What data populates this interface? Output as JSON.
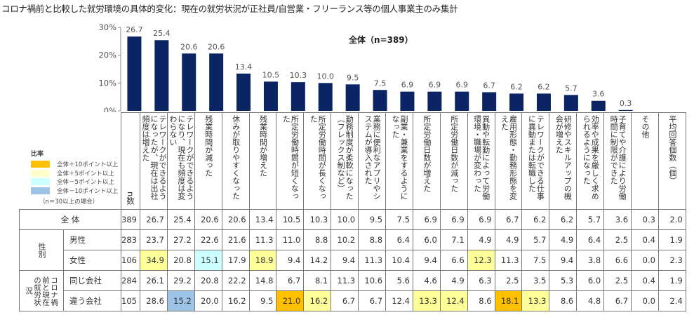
{
  "title": "コロナ禍前と比較した就労環境の具体的変化：現在の就労状況が正社員/自営業・フリーランス等の個人事業主のみ集計",
  "subtitle": "全体（n=389）",
  "legend": {
    "title": "比率",
    "items": [
      {
        "label": "全体＋10ポイント以上",
        "color": "#ffc000"
      },
      {
        "label": "全体＋5ポイント以上",
        "color": "#ffffcc"
      },
      {
        "label": "全体－5ポイント以上",
        "color": "#ccffff"
      },
      {
        "label": "全体－10ポイント以上",
        "color": "#9dc3e6"
      }
    ],
    "note": "（n＝30以上の場合）"
  },
  "colors": {
    "bar": "#0b2463",
    "high10": "#ffc000",
    "high5": "#ffff99",
    "low5": "#ccffff",
    "low10": "#9dc3e6"
  },
  "table": {
    "n_header": "n数",
    "rows": [
      {
        "group": "全 体",
        "sub": "",
        "n": "389",
        "values": [
          "26.7",
          "25.4",
          "20.6",
          "20.6",
          "13.4",
          "10.5",
          "10.3",
          "10.0",
          "9.5",
          "7.5",
          "6.9",
          "6.9",
          "6.9",
          "6.7",
          "6.2",
          "6.2",
          "5.7",
          "3.6",
          "0.3",
          "2.0"
        ],
        "hl": {}
      },
      {
        "group": "性別",
        "sub": "男性",
        "n": "283",
        "values": [
          "23.7",
          "27.2",
          "22.6",
          "21.6",
          "11.3",
          "11.0",
          "8.8",
          "10.2",
          "8.8",
          "6.4",
          "6.0",
          "7.1",
          "4.9",
          "4.9",
          "5.7",
          "4.9",
          "6.4",
          "2.5",
          "0.4",
          "1.9"
        ],
        "hl": {}
      },
      {
        "group": "",
        "sub": "女性",
        "n": "106",
        "values": [
          "34.9",
          "20.8",
          "15.1",
          "17.9",
          "18.9",
          "9.4",
          "14.2",
          "9.4",
          "11.3",
          "10.4",
          "9.4",
          "6.6",
          "12.3",
          "11.3",
          "7.5",
          "9.4",
          "3.8",
          "6.6",
          "0.0",
          "2.3"
        ],
        "hl": {
          "0": "high5",
          "2": "low5",
          "4": "high5",
          "12": "high5"
        }
      },
      {
        "group": "コロナ禍前と現在の就労状況",
        "sub": "同じ会社",
        "n": "284",
        "values": [
          "26.1",
          "29.2",
          "20.8",
          "22.2",
          "14.8",
          "6.7",
          "8.1",
          "11.3",
          "10.6",
          "5.6",
          "4.6",
          "4.9",
          "6.3",
          "2.5",
          "3.5",
          "5.3",
          "6.0",
          "2.5",
          "0.4",
          "1.9"
        ],
        "hl": {}
      },
      {
        "group": "",
        "sub": "違う会社",
        "n": "105",
        "values": [
          "28.6",
          "15.2",
          "20.0",
          "16.2",
          "9.5",
          "21.0",
          "16.2",
          "6.7",
          "6.7",
          "12.4",
          "13.3",
          "12.4",
          "8.6",
          "18.1",
          "13.3",
          "8.6",
          "4.8",
          "6.7",
          "0.0",
          "2.4"
        ],
        "hl": {
          "1": "low10",
          "5": "high10",
          "6": "high5",
          "10": "high5",
          "11": "high5",
          "13": "high10",
          "14": "high5"
        }
      }
    ]
  },
  "chart_data": {
    "type": "bar",
    "title": "コロナ禍前と比較した就労環境の具体的変化：現在の就労状況が正社員/自営業・フリーランス等の個人事業主のみ集計",
    "subtitle": "全体（n=389）",
    "xlabel": "",
    "ylabel": "",
    "ylim": [
      0,
      30
    ],
    "yticks": [
      "0%",
      "10%",
      "20%",
      "30%"
    ],
    "grid": false,
    "categories": [
      "テレワークができるようになったが、現在は出社頻度は増えた",
      "テレワークができるようになり、現在も頻度は変わらない",
      "残業時間が減った",
      "休みが取りやすくなった",
      "残業時間が増えた",
      "所定労働時間が短くなった",
      "所定労働時間が長くなった",
      "勤務制度が柔軟になった（フレックス制など）",
      "業務に便利なアプリやシステムが導入された",
      "副業・兼業をするようになった",
      "所定労働日数が増えた",
      "所定労働日数が減った",
      "異動や転勤によって労働環境・職場が変わった",
      "雇用形態・勤務形態を変えた",
      "テレワークができる仕事に異動または転職した",
      "研修やスキルアップの機会が増えた",
      "効率や成果を厳しく求められるようになった",
      "子育てや介護により労働時間に制限ができた",
      "その他",
      "平均回答個数（個）"
    ],
    "values": [
      26.7,
      25.4,
      20.6,
      20.6,
      13.4,
      10.5,
      10.3,
      10.0,
      9.5,
      7.5,
      6.9,
      6.9,
      6.9,
      6.7,
      6.2,
      6.2,
      5.7,
      3.6,
      0.3,
      null
    ],
    "value_labels": [
      "26.7",
      "25.4",
      "20.6",
      "20.6",
      "13.4",
      "10.5",
      "10.3",
      "10.0",
      "9.5",
      "7.5",
      "6.9",
      "6.9",
      "6.9",
      "6.7",
      "6.2",
      "6.2",
      "5.7",
      "3.6",
      "0.3",
      ""
    ]
  }
}
